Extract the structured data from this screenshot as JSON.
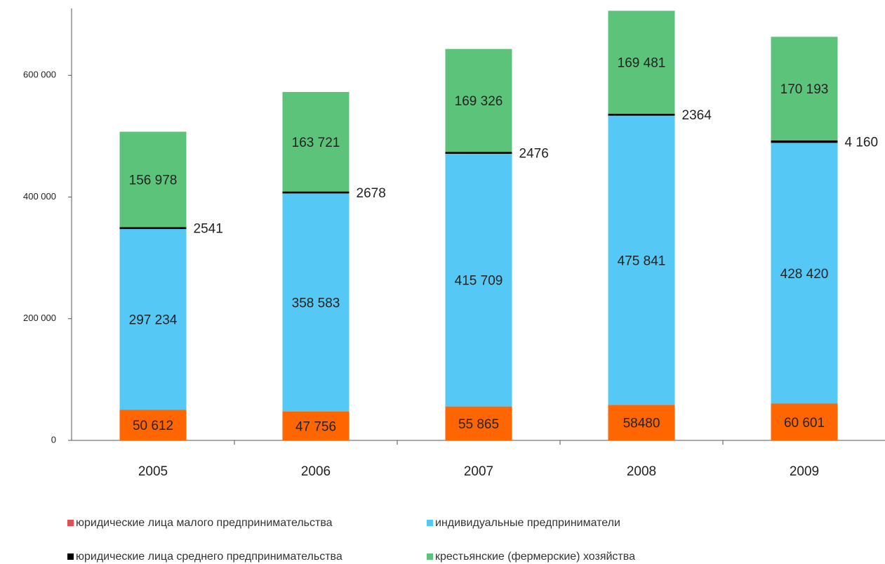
{
  "chart_data": {
    "type": "stacked_bar",
    "categories": [
      "2005",
      "2006",
      "2007",
      "2008",
      "2009"
    ],
    "series": [
      {
        "name": "юридические лица малого предпринимательства",
        "color": "#ff6600",
        "values": [
          50612,
          47756,
          55865,
          58480,
          60601
        ],
        "value_labels": [
          "50 612",
          "47 756",
          "55 865",
          "58480",
          "60 601"
        ]
      },
      {
        "name": "индивидуальные предприниматели",
        "color": "#55c8f5",
        "values": [
          297234,
          358583,
          415709,
          475841,
          428420
        ],
        "value_labels": [
          "297 234",
          "358 583",
          "415 709",
          "475 841",
          "428 420"
        ]
      },
      {
        "name": "юридические лица среднего предпринимательства",
        "color": "#000000",
        "values": [
          2541,
          2678,
          2476,
          2364,
          4160
        ],
        "value_labels": [
          "2541",
          "2678",
          "2476",
          "2364",
          "4 160"
        ]
      },
      {
        "name": "крестьянские (фермерские) хозяйства",
        "color": "#5cc47a",
        "values": [
          156978,
          163721,
          169326,
          169481,
          170193
        ],
        "value_labels": [
          "156 978",
          "163 721",
          "169 326",
          "169 481",
          "170 193"
        ]
      }
    ],
    "ylim": [
      0,
      710000
    ],
    "yticks": [
      0,
      {
        "value": 200000,
        "label": "200 000"
      },
      {
        "value": 400000,
        "label": "400 000"
      },
      {
        "value": 600000,
        "label": "600 000"
      }
    ],
    "grid": false
  }
}
